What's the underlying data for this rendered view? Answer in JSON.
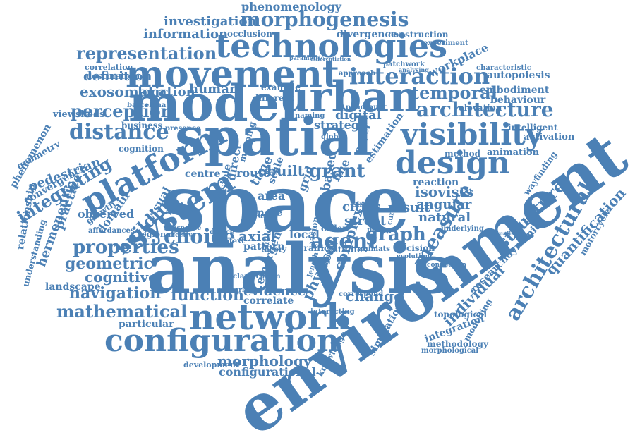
{
  "colors": {
    "word": "#4b80b5",
    "background": "#ffffff"
  },
  "words": [
    "space",
    "environment",
    "analysis",
    "spatial",
    "model",
    "movement",
    "urban",
    "technologies",
    "network",
    "configuration",
    "design",
    "visibility",
    "platform",
    "system",
    "distance",
    "interaction",
    "morphogenesis",
    "representation",
    "architecture",
    "perception",
    "integrating",
    "building",
    "properties",
    "choice",
    "agent",
    "graph",
    "measure",
    "isovists",
    "navigation",
    "mathematical",
    "function",
    "geometric",
    "cognitive",
    "morphology",
    "configurational",
    "architectural",
    "individual",
    "temporal",
    "investigation",
    "information",
    "phenomenology",
    "exosomatic",
    "definition",
    "human",
    "location",
    "grant",
    "built",
    "change",
    "evidence",
    "axial",
    "structure",
    "natural",
    "result",
    "angular",
    "digital",
    "cities",
    "street",
    "complex",
    "physical",
    "local",
    "route",
    "area",
    "visual",
    "domain",
    "practice",
    "hermeneutic",
    "pedestrian",
    "convergence",
    "geometry",
    "phenomenon",
    "relationship",
    "understanding",
    "landscape",
    "observed",
    "workplace",
    "autopoiesis",
    "embodiment",
    "behaviour",
    "elevation",
    "intelligent",
    "activation",
    "animation",
    "method",
    "wayfinding",
    "quantification",
    "researchdynamic",
    "motorcycle",
    "topological",
    "integration",
    "simulation",
    "modelling",
    "methodology",
    "morphological",
    "knowledge",
    "development",
    "particular",
    "correlate",
    "interacting",
    "divergence",
    "construction",
    "experiment",
    "occlusion",
    "mapping",
    "viewsheds",
    "destination",
    "correlation",
    "business",
    "cognition",
    "barcelona",
    "presence",
    "regional",
    "growth",
    "affordances",
    "pattern",
    "theory",
    "traffic",
    "studies",
    "animats",
    "decision",
    "person",
    "order",
    "based",
    "fine",
    "time",
    "scale",
    "field",
    "vision",
    "grid",
    "strategy",
    "estimation",
    "paper",
    "panoramic",
    "naming",
    "example",
    "different",
    "reaction",
    "simple",
    "more",
    "context",
    "device",
    "centre",
    "effective",
    "response",
    "possible",
    "direct",
    "user",
    "rule",
    "emergent",
    "clarification",
    "experience",
    "connection",
    "evolution",
    "current",
    "underlying",
    "patchwork",
    "approach",
    "parametric",
    "differentiation",
    "characteristic",
    "analysing",
    "visualising",
    "correspond",
    "segment",
    "length",
    "global"
  ]
}
